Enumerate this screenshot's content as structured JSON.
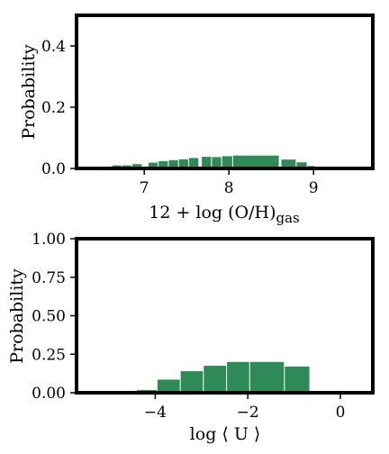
{
  "chart_data": [
    {
      "type": "bar",
      "panel": "top",
      "xlabel": "12 + log (O/H)",
      "xlabel_subscript": "gas",
      "ylabel": "Probability",
      "xlim": [
        6.2,
        9.7
      ],
      "ylim": [
        0.0,
        0.5
      ],
      "xticks": [
        7,
        8,
        9
      ],
      "xtick_labels": [
        "7",
        "8",
        "9"
      ],
      "yticks": [
        0.0,
        0.2,
        0.4
      ],
      "ytick_labels": [
        "0.0",
        "0.2",
        "0.4"
      ],
      "bar_color": "#2e8b57",
      "bins": [
        {
          "x0": 6.5,
          "x1": 6.62,
          "value": 0.006
        },
        {
          "x0": 6.62,
          "x1": 6.74,
          "value": 0.01
        },
        {
          "x0": 6.74,
          "x1": 6.86,
          "value": 0.01
        },
        {
          "x0": 6.86,
          "x1": 6.98,
          "value": 0.014
        },
        {
          "x0": 7.05,
          "x1": 7.17,
          "value": 0.019
        },
        {
          "x0": 7.17,
          "x1": 7.29,
          "value": 0.024
        },
        {
          "x0": 7.29,
          "x1": 7.41,
          "value": 0.027
        },
        {
          "x0": 7.41,
          "x1": 7.53,
          "value": 0.03
        },
        {
          "x0": 7.53,
          "x1": 7.65,
          "value": 0.034
        },
        {
          "x0": 7.68,
          "x1": 7.8,
          "value": 0.038
        },
        {
          "x0": 7.8,
          "x1": 7.92,
          "value": 0.037
        },
        {
          "x0": 7.92,
          "x1": 8.05,
          "value": 0.04
        },
        {
          "x0": 8.05,
          "x1": 8.6,
          "value": 0.042
        },
        {
          "x0": 8.62,
          "x1": 8.8,
          "value": 0.029
        },
        {
          "x0": 8.8,
          "x1": 8.93,
          "value": 0.02
        },
        {
          "x0": 8.93,
          "x1": 9.02,
          "value": 0.008
        }
      ]
    },
    {
      "type": "bar",
      "panel": "bottom",
      "xlabel": "log ⟨ U ⟩",
      "ylabel": "Probability",
      "xlim": [
        -5.7,
        0.7
      ],
      "ylim": [
        0.0,
        1.0
      ],
      "xticks": [
        -4,
        -2,
        0
      ],
      "xtick_labels": [
        "−4",
        "−2",
        "0"
      ],
      "yticks": [
        0.0,
        0.25,
        0.5,
        0.75,
        1.0
      ],
      "ytick_labels": [
        "0.00",
        "0.25",
        "0.50",
        "0.75",
        "1.00"
      ],
      "bar_color": "#2e8b57",
      "bins": [
        {
          "x0": -4.4,
          "x1": -3.95,
          "value": 0.018
        },
        {
          "x0": -3.95,
          "x1": -3.45,
          "value": 0.085
        },
        {
          "x0": -3.45,
          "x1": -2.95,
          "value": 0.14
        },
        {
          "x0": -2.95,
          "x1": -2.45,
          "value": 0.175
        },
        {
          "x0": -2.45,
          "x1": -1.95,
          "value": 0.2
        },
        {
          "x0": -1.95,
          "x1": -1.2,
          "value": 0.2
        },
        {
          "x0": -1.2,
          "x1": -0.65,
          "value": 0.17
        }
      ]
    }
  ]
}
